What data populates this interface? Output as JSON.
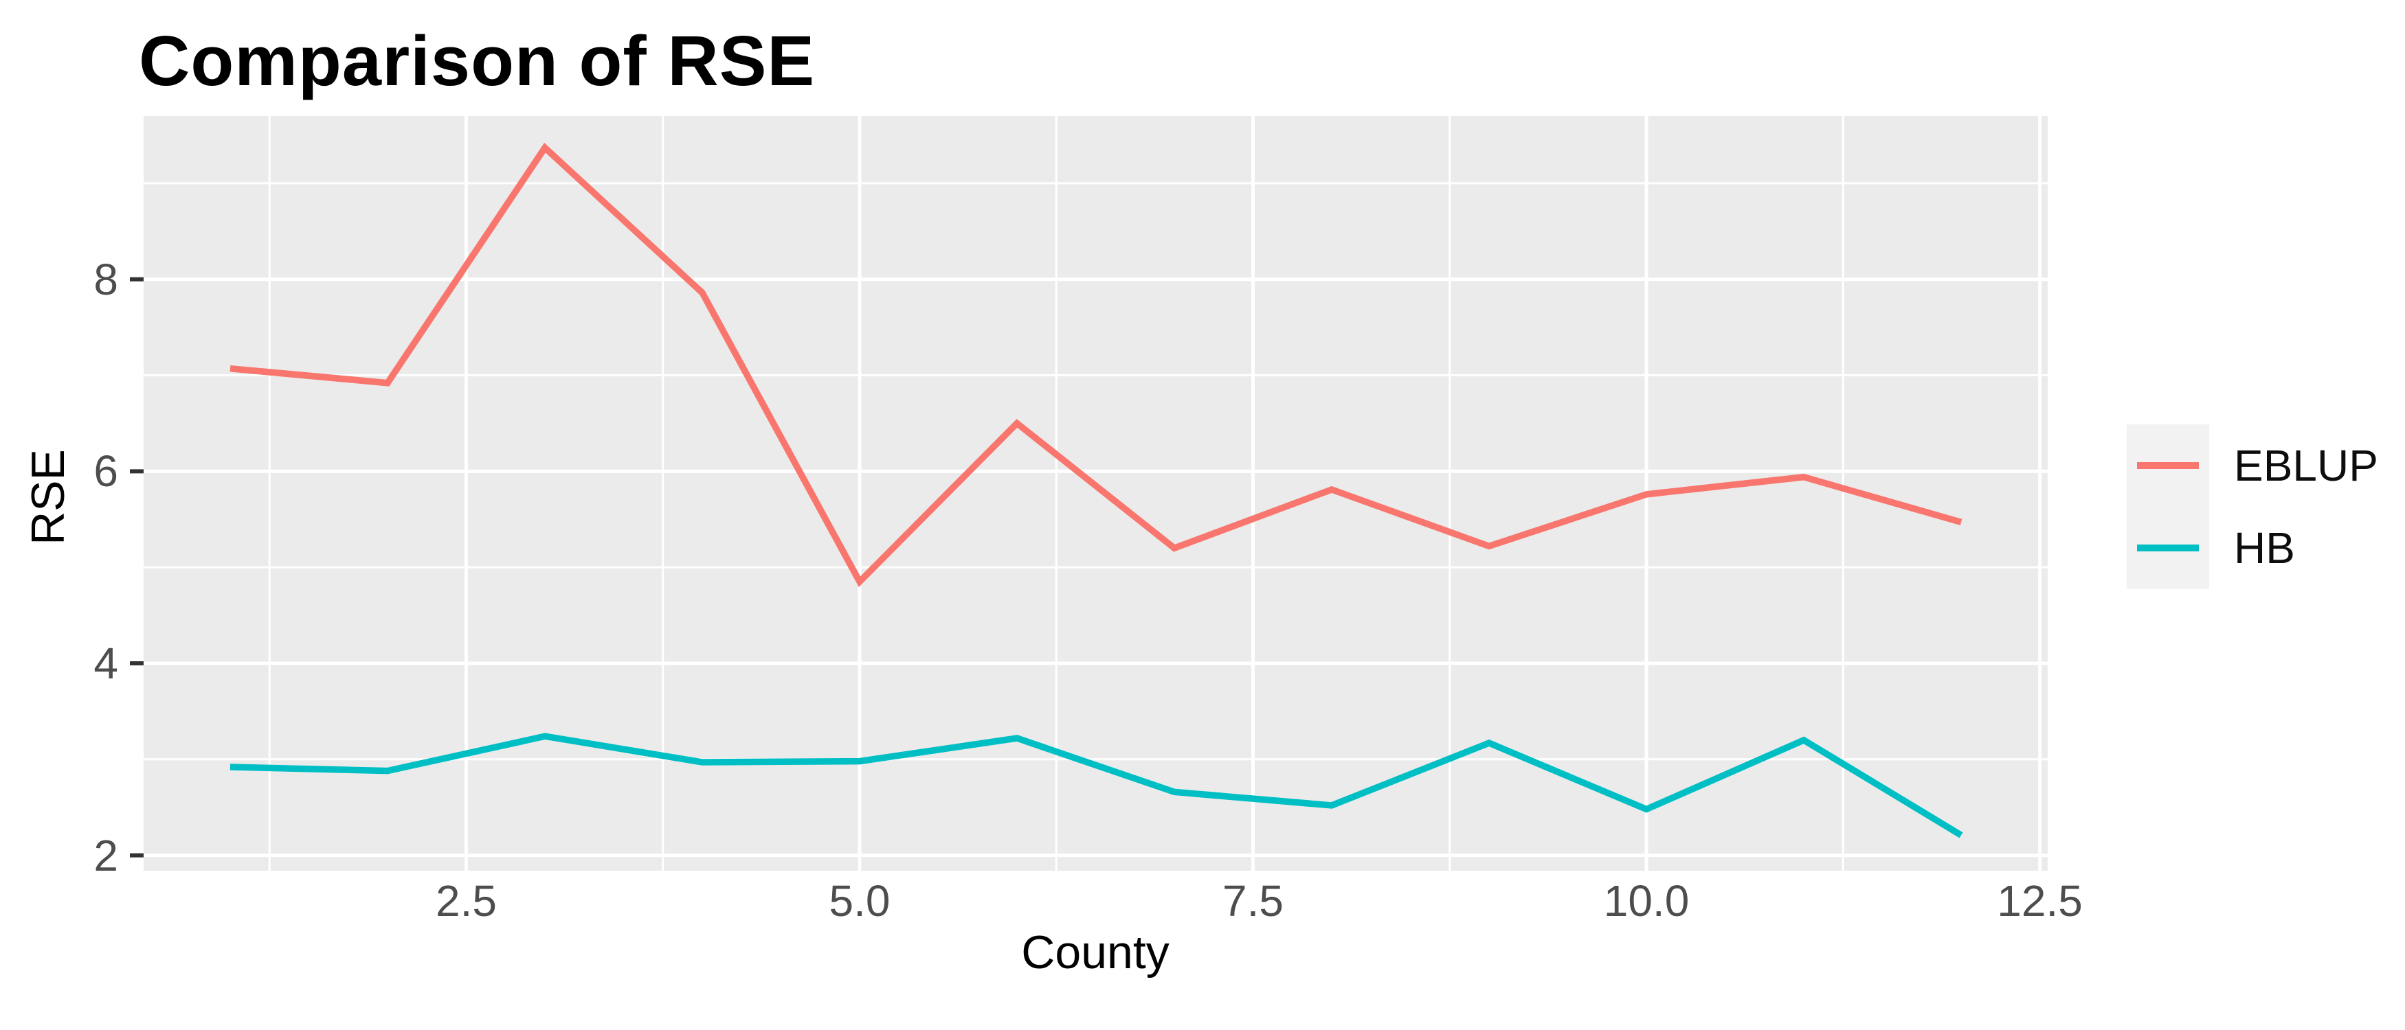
{
  "chart_data": {
    "type": "line",
    "title": "Comparison of RSE",
    "xlabel": "County",
    "ylabel": "RSE",
    "x": [
      1,
      2,
      3,
      4,
      5,
      6,
      7,
      8,
      9,
      10,
      11,
      12
    ],
    "series": [
      {
        "name": "EBLUP",
        "color": "#F8766D",
        "values": [
          7.07,
          6.92,
          9.37,
          7.86,
          4.85,
          6.5,
          5.2,
          5.81,
          5.22,
          5.76,
          5.94,
          5.47
        ]
      },
      {
        "name": "HB",
        "color": "#00BFC4",
        "values": [
          2.92,
          2.88,
          3.24,
          2.97,
          2.98,
          3.22,
          2.66,
          2.52,
          3.17,
          2.48,
          3.2,
          2.21
        ]
      }
    ],
    "x_ticks": {
      "values": [
        2.5,
        5.0,
        7.5,
        10.0,
        12.5
      ],
      "labels": [
        "2.5",
        "5.0",
        "7.5",
        "10.0",
        "12.5"
      ]
    },
    "y_ticks": {
      "values": [
        2,
        4,
        6,
        8
      ],
      "labels": [
        "2",
        "4",
        "6",
        "8"
      ]
    },
    "x_minor": [
      1.25,
      3.75,
      6.25,
      8.75,
      11.25
    ],
    "y_minor": [
      3,
      5,
      7,
      9
    ],
    "xlim": [
      0.45,
      12.55
    ],
    "ylim": [
      1.84,
      9.7
    ],
    "grid": true,
    "legend_position": "right",
    "colors": {
      "panel_bg": "#EBEBEB",
      "grid": "#FFFFFF",
      "axis_text": "#4D4D4D",
      "tick_mark": "#333333",
      "legend_key_bg": "#F2F2F2",
      "title_text": "#000000"
    }
  }
}
